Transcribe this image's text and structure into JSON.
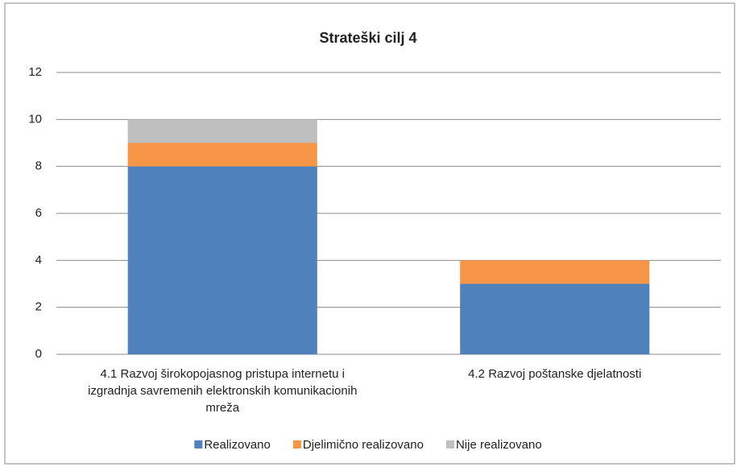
{
  "chart_data": {
    "type": "stacked_bar",
    "title": "Strateški cilj 4",
    "categories": [
      "4.1 Razvoj širokopojasnog pristupa internetu i izgradnja savremenih elektronskih komunikacionih mreža",
      "4.2 Razvoj poštanske djelatnosti"
    ],
    "series": [
      {
        "name": "Realizovano",
        "color": "#4f81bd",
        "values": [
          8,
          3
        ]
      },
      {
        "name": "Djelimično realizovano",
        "color": "#f79646",
        "values": [
          1,
          1
        ]
      },
      {
        "name": "Nije realizovano",
        "color": "#bfbfbf",
        "values": [
          1,
          0
        ]
      }
    ],
    "ylim": [
      0,
      12
    ],
    "yticks": [
      0,
      2,
      4,
      6,
      8,
      10,
      12
    ],
    "grid": true,
    "legend": "bottom"
  }
}
